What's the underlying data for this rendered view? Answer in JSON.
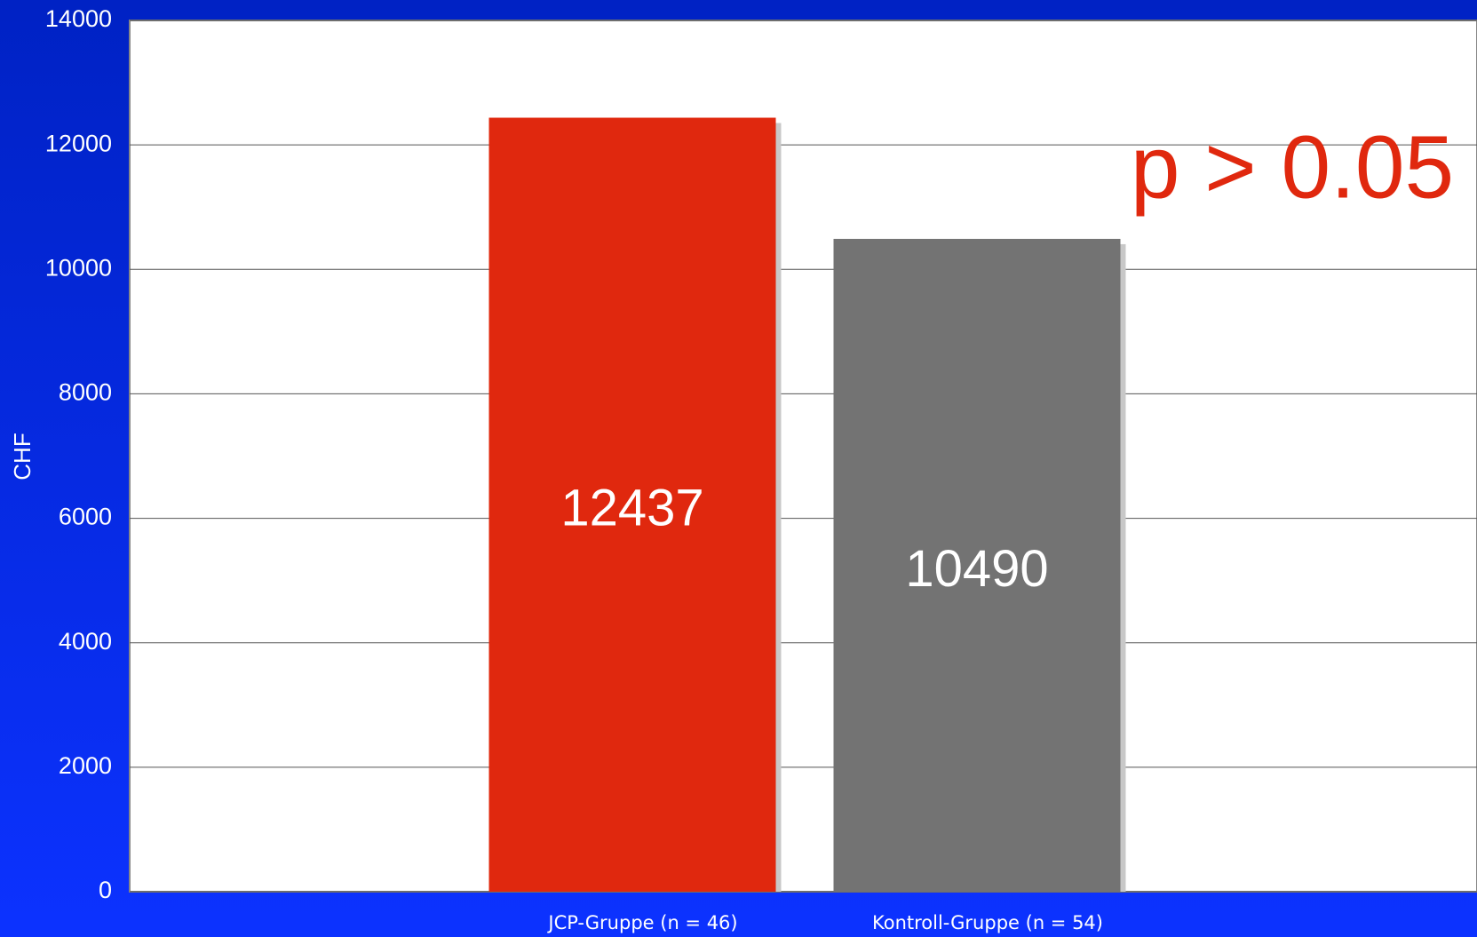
{
  "chart_data": {
    "type": "bar",
    "ylabel": "CHF",
    "annotation": "p > 0.05",
    "categories": [
      "JCP-Gruppe (n = 46)",
      "Kontroll-Gruppe (n = 54)"
    ],
    "values": [
      12437,
      10490
    ],
    "colors": [
      "#e0280e",
      "#737373"
    ],
    "ylim": [
      0,
      14000
    ],
    "yticks": [
      0,
      2000,
      4000,
      6000,
      8000,
      10000,
      12000,
      14000
    ],
    "grid": true
  }
}
